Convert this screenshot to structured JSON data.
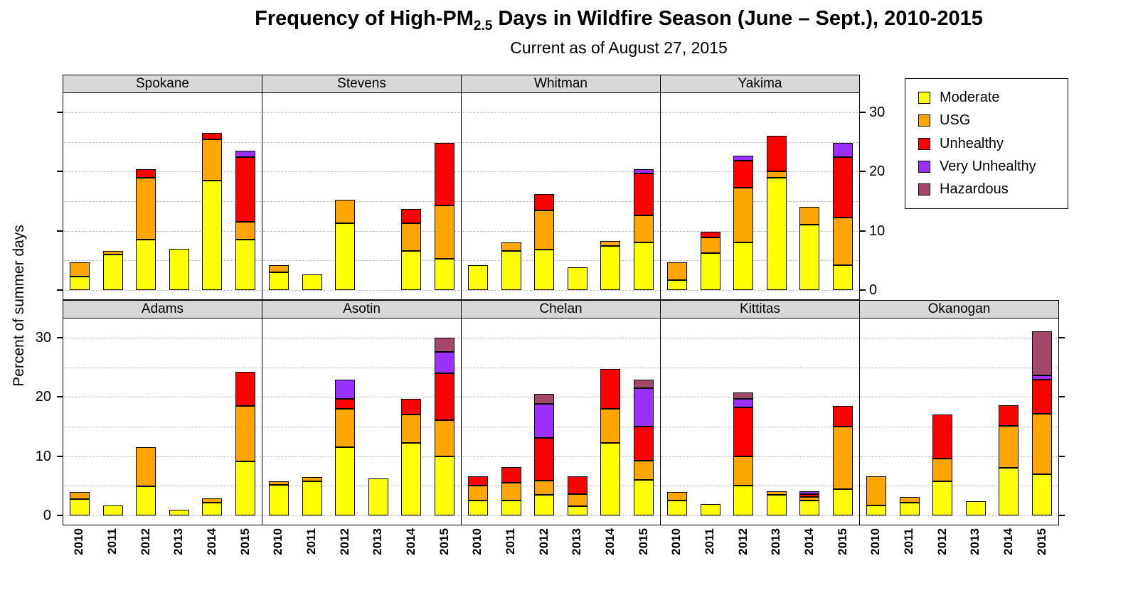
{
  "title": {
    "prefix": "Frequency of High-PM",
    "subscript": "2.5",
    "suffix": " Days in Wildfire Season (June – Sept.), 2010-2015"
  },
  "subtitle": "Current as of August 27, 2015",
  "ylabel": "Percent of summer days",
  "chart_data": {
    "type": "bar",
    "stacked": true,
    "unit": "percent of summer days",
    "years": [
      "2010",
      "2011",
      "2012",
      "2013",
      "2014",
      "2015"
    ],
    "categories": [
      "Moderate",
      "USG",
      "Unhealthy",
      "Very Unhealthy",
      "Hazardous"
    ],
    "colors": {
      "Moderate": "#FFFF00",
      "USG": "#FFA500",
      "Unhealthy": "#FF0000",
      "Very Unhealthy": "#9B30FF",
      "Hazardous": "#A3476B"
    },
    "ylim": [
      0,
      33
    ],
    "yticks": [
      0,
      10,
      20,
      30
    ],
    "gridlines": [
      0,
      5,
      10,
      15,
      20,
      25,
      30
    ],
    "legend_position": "top-right",
    "rows": [
      [
        "Spokane",
        "Stevens",
        "Whitman",
        "Yakima"
      ],
      [
        "Adams",
        "Asotin",
        "Chelan",
        "Kittitas",
        "Okanogan"
      ]
    ],
    "panels": [
      {
        "county": "Spokane",
        "row": 0,
        "values": {
          "Moderate": [
            2.3,
            6,
            8.5,
            7,
            18.5,
            8.5
          ],
          "USG": [
            2.4,
            0.6,
            10.5,
            0,
            7,
            3
          ],
          "Unhealthy": [
            0,
            0,
            1.4,
            0,
            1,
            11
          ],
          "Very Unhealthy": [
            0,
            0,
            0,
            0,
            0,
            1
          ],
          "Hazardous": [
            0,
            0,
            0,
            0,
            0,
            0
          ]
        }
      },
      {
        "county": "Stevens",
        "row": 0,
        "values": {
          "Moderate": [
            3,
            2.6,
            11.3,
            0,
            6.6,
            5.3
          ],
          "USG": [
            1.2,
            0,
            4,
            0,
            4.7,
            9
          ],
          "Unhealthy": [
            0,
            0,
            0,
            0,
            2.4,
            10.5
          ],
          "Very Unhealthy": [
            0,
            0,
            0,
            0,
            0,
            0
          ],
          "Hazardous": [
            0,
            0,
            0,
            0,
            0,
            0
          ]
        }
      },
      {
        "county": "Whitman",
        "row": 0,
        "values": {
          "Moderate": [
            4.2,
            6.6,
            6.8,
            3.8,
            7.4,
            8
          ],
          "USG": [
            0,
            1.4,
            6.6,
            0,
            0.9,
            4.6
          ],
          "Unhealthy": [
            0,
            0,
            2.8,
            0,
            0,
            7.1
          ],
          "Very Unhealthy": [
            0,
            0,
            0,
            0,
            0,
            0.7
          ],
          "Hazardous": [
            0,
            0,
            0,
            0,
            0,
            0
          ]
        }
      },
      {
        "county": "Yakima",
        "row": 0,
        "values": {
          "Moderate": [
            1.7,
            6.2,
            8,
            19,
            11,
            4.2
          ],
          "USG": [
            3,
            2.7,
            9.3,
            1,
            3,
            8
          ],
          "Unhealthy": [
            0,
            0.9,
            4.5,
            6,
            0,
            10.2
          ],
          "Very Unhealthy": [
            0,
            0,
            0.9,
            0,
            0,
            2.4
          ],
          "Hazardous": [
            0,
            0,
            0,
            0,
            0,
            0
          ]
        }
      },
      {
        "county": "Adams",
        "row": 1,
        "values": {
          "Moderate": [
            2.8,
            1.7,
            4.9,
            1,
            2.2,
            9.1
          ],
          "USG": [
            1.2,
            0,
            6.6,
            0,
            0.7,
            9.4
          ],
          "Unhealthy": [
            0,
            0,
            0,
            0,
            0,
            5.7
          ],
          "Very Unhealthy": [
            0,
            0,
            0,
            0,
            0,
            0
          ],
          "Hazardous": [
            0,
            0,
            0,
            0,
            0,
            0
          ]
        }
      },
      {
        "county": "Asotin",
        "row": 1,
        "values": {
          "Moderate": [
            5.2,
            5.8,
            11.5,
            6.2,
            12.2,
            10
          ],
          "USG": [
            0.6,
            0.7,
            6.5,
            0,
            4.8,
            6.1
          ],
          "Unhealthy": [
            0,
            0,
            1.7,
            0,
            2.7,
            7.9
          ],
          "Very Unhealthy": [
            0,
            0,
            3.2,
            0,
            0,
            3.6
          ],
          "Hazardous": [
            0,
            0,
            0,
            0,
            0,
            2.4
          ]
        }
      },
      {
        "county": "Chelan",
        "row": 1,
        "values": {
          "Moderate": [
            2.5,
            2.5,
            3.5,
            1.6,
            12.2,
            6
          ],
          "USG": [
            2.5,
            3,
            2.4,
            2,
            5.8,
            3.2
          ],
          "Unhealthy": [
            1.6,
            2.7,
            7.2,
            3,
            6.7,
            5.8
          ],
          "Very Unhealthy": [
            0,
            0,
            5.7,
            0,
            0,
            6.5
          ],
          "Hazardous": [
            0,
            0,
            1.7,
            0,
            0,
            1.4
          ]
        }
      },
      {
        "county": "Kittitas",
        "row": 1,
        "values": {
          "Moderate": [
            2.5,
            1.9,
            5,
            3.5,
            2.5,
            4.4
          ],
          "USG": [
            1.5,
            0,
            5,
            0.6,
            0.6,
            10.6
          ],
          "Unhealthy": [
            0,
            0,
            8.2,
            0,
            0.5,
            3.5
          ],
          "Very Unhealthy": [
            0,
            0,
            1.5,
            0,
            0.5,
            0
          ],
          "Hazardous": [
            0,
            0,
            1.1,
            0,
            0,
            0
          ]
        }
      },
      {
        "county": "Okanogan",
        "row": 1,
        "values": {
          "Moderate": [
            1.7,
            2.2,
            5.8,
            2.4,
            8,
            7
          ],
          "USG": [
            4.9,
            0.9,
            3.8,
            0,
            7.1,
            10.2
          ],
          "Unhealthy": [
            0,
            0,
            7.4,
            0,
            3.5,
            5.7
          ],
          "Very Unhealthy": [
            0,
            0,
            0,
            0,
            0,
            0.7
          ],
          "Hazardous": [
            0,
            0,
            0,
            0,
            0,
            7.5
          ]
        }
      }
    ]
  }
}
